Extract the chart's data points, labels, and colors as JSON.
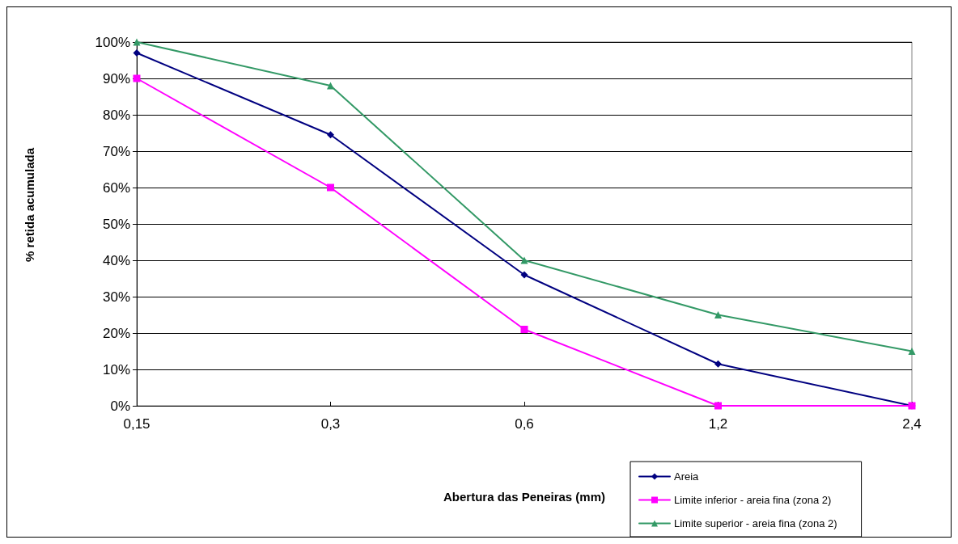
{
  "chart_data": {
    "type": "line",
    "xlabel": "Abertura das Peneiras (mm)",
    "ylabel": "% retida acumulada",
    "categories": [
      "0,15",
      "0,3",
      "0,6",
      "1,2",
      "2,4"
    ],
    "series": [
      {
        "name": "Areia",
        "color": "#000080",
        "marker": "diamond",
        "values": [
          97,
          74.5,
          36,
          11.5,
          0
        ]
      },
      {
        "name": "Limite inferior - areia fina (zona 2)",
        "color": "#ff00ff",
        "marker": "square",
        "values": [
          90,
          60,
          21,
          0,
          0
        ]
      },
      {
        "name": "Limite superior - areia fina (zona 2)",
        "color": "#339966",
        "marker": "triangle",
        "values": [
          100,
          88,
          40,
          25,
          15
        ]
      }
    ],
    "ylim": [
      0,
      100
    ],
    "yticks": [
      {
        "value": 0,
        "label": "0%"
      },
      {
        "value": 10,
        "label": "10%"
      },
      {
        "value": 20,
        "label": "20%"
      },
      {
        "value": 30,
        "label": "30%"
      },
      {
        "value": 40,
        "label": "40%"
      },
      {
        "value": 50,
        "label": "50%"
      },
      {
        "value": 60,
        "label": "60%"
      },
      {
        "value": 70,
        "label": "70%"
      },
      {
        "value": 80,
        "label": "80%"
      },
      {
        "value": 90,
        "label": "90%"
      },
      {
        "value": 100,
        "label": "100%"
      }
    ],
    "grid": "y",
    "legend": "bottom right",
    "line_style": "solid"
  }
}
